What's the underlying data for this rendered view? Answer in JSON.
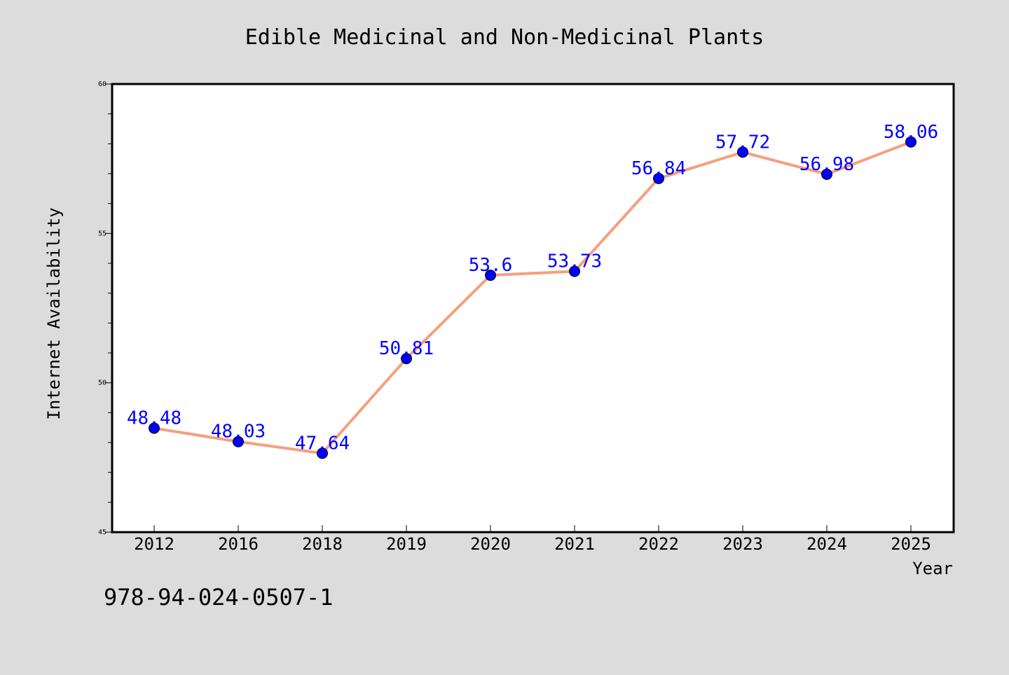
{
  "chart_data": {
    "type": "line",
    "title": "Edible Medicinal and Non-Medicinal Plants",
    "xlabel": "Year",
    "ylabel": "Internet Availability",
    "categories": [
      "2012",
      "2016",
      "2018",
      "2019",
      "2020",
      "2021",
      "2022",
      "2023",
      "2024",
      "2025"
    ],
    "series": [
      {
        "values": [
          48.48,
          48.03,
          47.64,
          50.81,
          53.6,
          53.73,
          56.84,
          57.72,
          56.98,
          58.06
        ],
        "labels": [
          "48.48",
          "48.03",
          "47.64",
          "50.81",
          "53.6",
          "53.73",
          "56.84",
          "57.72",
          "56.98",
          "58.06"
        ],
        "line_color": "#f4a07e",
        "marker_color": "#0000ff",
        "label_color": "#0000ff"
      }
    ],
    "ylim": [
      45,
      60
    ],
    "yticks": [
      "45",
      "50",
      "55",
      "60"
    ],
    "grid": false,
    "legend": "none"
  },
  "footer": {
    "isbn": "978-94-024-0507-1"
  },
  "colors": {
    "background": "#dcdcdc",
    "plot_background": "#ffffff",
    "axis": "#000000"
  }
}
